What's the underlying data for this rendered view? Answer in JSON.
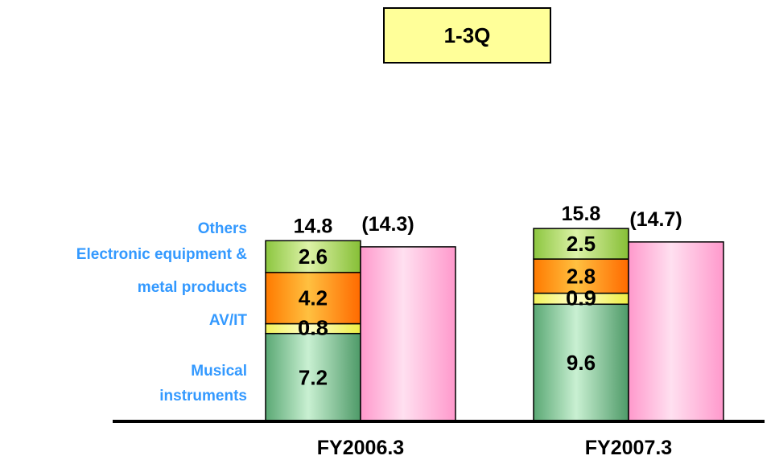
{
  "title": "1-3Q",
  "chart_data": {
    "type": "bar",
    "stacked": true,
    "categories": [
      "FY2006.3",
      "FY2007.3"
    ],
    "series": [
      {
        "name": "Musical instruments",
        "values": [
          7.2,
          9.6
        ],
        "color": "#6fbf8a"
      },
      {
        "name": "AV/IT",
        "values": [
          0.8,
          0.9
        ],
        "color": "#ffff66"
      },
      {
        "name": "Electronic equipment & metal products",
        "values": [
          4.2,
          2.8
        ],
        "color": "#ff8800"
      },
      {
        "name": "Others",
        "values": [
          2.6,
          2.5
        ],
        "color": "#9acd32"
      }
    ],
    "totals": [
      "14.8",
      "15.8"
    ],
    "comparison": {
      "values": [
        14.3,
        14.7
      ],
      "labels": [
        "(14.3)",
        "(14.7)"
      ],
      "color": "#ffb6d9"
    },
    "legend_color": "#3399ff",
    "legend_labels": [
      [
        "Others"
      ],
      [
        "Electronic equipment &",
        "metal products"
      ],
      [
        "AV/IT"
      ],
      [
        "Musical",
        "instruments"
      ]
    ]
  }
}
